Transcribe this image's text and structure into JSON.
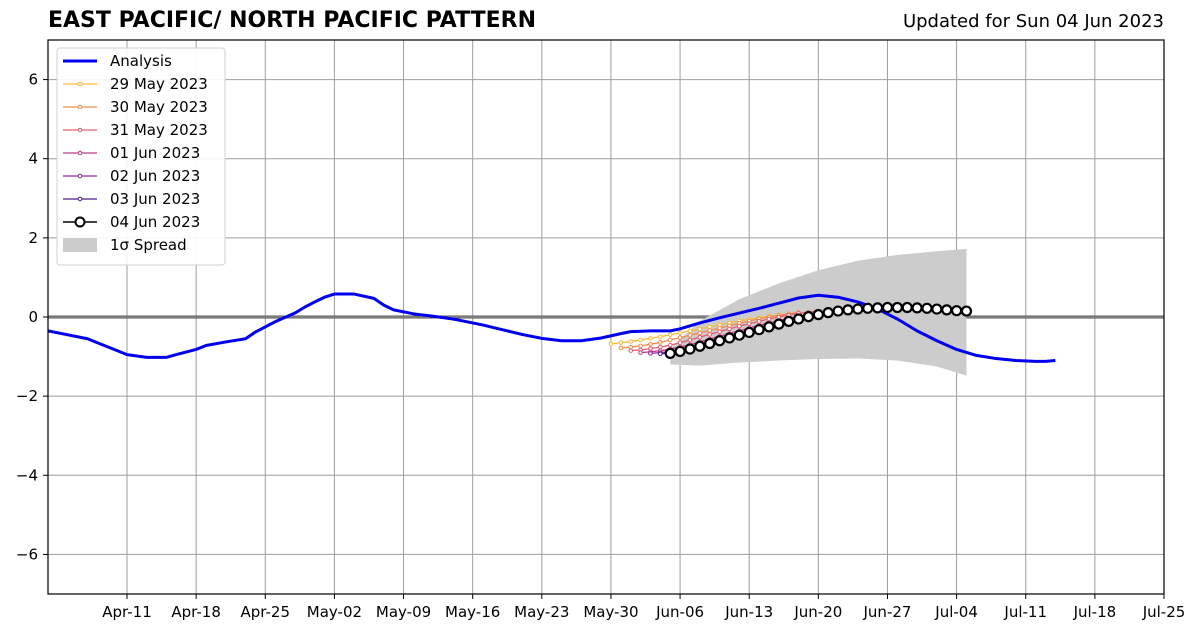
{
  "chart_data": {
    "type": "line",
    "title": "EAST PACIFIC/ NORTH PACIFIC PATTERN",
    "subtitle": "Updated for Sun 04 Jun 2023",
    "xlim": [
      "2023-04-03",
      "2023-07-25"
    ],
    "ylim": [
      -7,
      7
    ],
    "x_ticks": [
      {
        "date": "2023-04-11",
        "label": "Apr-11"
      },
      {
        "date": "2023-04-18",
        "label": "Apr-18"
      },
      {
        "date": "2023-04-25",
        "label": "Apr-25"
      },
      {
        "date": "2023-05-02",
        "label": "May-02"
      },
      {
        "date": "2023-05-09",
        "label": "May-09"
      },
      {
        "date": "2023-05-16",
        "label": "May-16"
      },
      {
        "date": "2023-05-23",
        "label": "May-23"
      },
      {
        "date": "2023-05-30",
        "label": "May-30"
      },
      {
        "date": "2023-06-06",
        "label": "Jun-06"
      },
      {
        "date": "2023-06-13",
        "label": "Jun-13"
      },
      {
        "date": "2023-06-20",
        "label": "Jun-20"
      },
      {
        "date": "2023-06-27",
        "label": "Jun-27"
      },
      {
        "date": "2023-07-04",
        "label": "Jul-04"
      },
      {
        "date": "2023-07-11",
        "label": "Jul-11"
      },
      {
        "date": "2023-07-18",
        "label": "Jul-18"
      },
      {
        "date": "2023-07-25",
        "label": "Jul-25"
      }
    ],
    "y_ticks": [
      {
        "value": -6,
        "label": "−6"
      },
      {
        "value": -4,
        "label": "−4"
      },
      {
        "value": -2,
        "label": "−2"
      },
      {
        "value": 0,
        "label": "0"
      },
      {
        "value": 2,
        "label": "2"
      },
      {
        "value": 4,
        "label": "4"
      },
      {
        "value": 6,
        "label": "6"
      }
    ],
    "grid": true,
    "zero_line": true,
    "legend_position": "top-left",
    "series": [
      {
        "name": "Analysis",
        "color": "#0000ee",
        "style": "thick-line",
        "points": [
          [
            "2023-04-03",
            -0.35
          ],
          [
            "2023-04-05",
            -0.45
          ],
          [
            "2023-04-07",
            -0.55
          ],
          [
            "2023-04-08",
            -0.65
          ],
          [
            "2023-04-10",
            -0.85
          ],
          [
            "2023-04-11",
            -0.95
          ],
          [
            "2023-04-13",
            -1.02
          ],
          [
            "2023-04-15",
            -1.02
          ],
          [
            "2023-04-16",
            -0.95
          ],
          [
            "2023-04-18",
            -0.82
          ],
          [
            "2023-04-19",
            -0.72
          ],
          [
            "2023-04-21",
            -0.63
          ],
          [
            "2023-04-23",
            -0.55
          ],
          [
            "2023-04-24",
            -0.38
          ],
          [
            "2023-04-26",
            -0.12
          ],
          [
            "2023-04-28",
            0.1
          ],
          [
            "2023-04-29",
            0.25
          ],
          [
            "2023-04-30",
            0.38
          ],
          [
            "2023-05-01",
            0.5
          ],
          [
            "2023-05-02",
            0.58
          ],
          [
            "2023-05-04",
            0.58
          ],
          [
            "2023-05-06",
            0.47
          ],
          [
            "2023-05-07",
            0.3
          ],
          [
            "2023-05-08",
            0.18
          ],
          [
            "2023-05-10",
            0.08
          ],
          [
            "2023-05-12",
            0.02
          ],
          [
            "2023-05-14",
            -0.05
          ],
          [
            "2023-05-15",
            -0.1
          ],
          [
            "2023-05-17",
            -0.2
          ],
          [
            "2023-05-19",
            -0.32
          ],
          [
            "2023-05-21",
            -0.44
          ],
          [
            "2023-05-23",
            -0.54
          ],
          [
            "2023-05-25",
            -0.6
          ],
          [
            "2023-05-27",
            -0.6
          ],
          [
            "2023-05-29",
            -0.53
          ],
          [
            "2023-05-31",
            -0.42
          ],
          [
            "2023-06-01",
            -0.37
          ],
          [
            "2023-06-03",
            -0.35
          ],
          [
            "2023-06-05",
            -0.35
          ],
          [
            "2023-06-06",
            -0.3
          ],
          [
            "2023-06-08",
            -0.15
          ],
          [
            "2023-06-10",
            -0.02
          ],
          [
            "2023-06-12",
            0.1
          ],
          [
            "2023-06-14",
            0.22
          ],
          [
            "2023-06-16",
            0.35
          ],
          [
            "2023-06-18",
            0.48
          ],
          [
            "2023-06-20",
            0.55
          ],
          [
            "2023-06-22",
            0.5
          ],
          [
            "2023-06-24",
            0.38
          ],
          [
            "2023-06-26",
            0.2
          ],
          [
            "2023-06-28",
            -0.05
          ],
          [
            "2023-06-30",
            -0.35
          ],
          [
            "2023-07-02",
            -0.6
          ],
          [
            "2023-07-04",
            -0.82
          ],
          [
            "2023-07-06",
            -0.97
          ],
          [
            "2023-07-08",
            -1.05
          ],
          [
            "2023-07-10",
            -1.1
          ],
          [
            "2023-07-12",
            -1.12
          ],
          [
            "2023-07-13",
            -1.12
          ],
          [
            "2023-07-14",
            -1.1
          ]
        ]
      },
      {
        "name": "29 May 2023",
        "color": "#f6b93b",
        "style": "small-marker",
        "points": [
          [
            "2023-05-30",
            -0.68
          ],
          [
            "2023-05-31",
            -0.65
          ],
          [
            "2023-06-01",
            -0.62
          ],
          [
            "2023-06-02",
            -0.58
          ],
          [
            "2023-06-03",
            -0.54
          ],
          [
            "2023-06-04",
            -0.5
          ],
          [
            "2023-06-05",
            -0.45
          ],
          [
            "2023-06-06",
            -0.4
          ],
          [
            "2023-06-07",
            -0.35
          ],
          [
            "2023-06-08",
            -0.3
          ],
          [
            "2023-06-09",
            -0.25
          ],
          [
            "2023-06-10",
            -0.2
          ],
          [
            "2023-06-11",
            -0.15
          ],
          [
            "2023-06-12",
            -0.1
          ],
          [
            "2023-06-13",
            -0.06
          ],
          [
            "2023-06-14",
            -0.02
          ],
          [
            "2023-06-15",
            0.02
          ],
          [
            "2023-06-16",
            0.05
          ],
          [
            "2023-06-17",
            0.08
          ]
        ]
      },
      {
        "name": "30 May 2023",
        "color": "#f08a4b",
        "style": "small-marker",
        "points": [
          [
            "2023-05-31",
            -0.78
          ],
          [
            "2023-06-01",
            -0.76
          ],
          [
            "2023-06-02",
            -0.73
          ],
          [
            "2023-06-03",
            -0.69
          ],
          [
            "2023-06-04",
            -0.64
          ],
          [
            "2023-06-05",
            -0.58
          ],
          [
            "2023-06-06",
            -0.52
          ],
          [
            "2023-06-07",
            -0.46
          ],
          [
            "2023-06-08",
            -0.4
          ],
          [
            "2023-06-09",
            -0.34
          ],
          [
            "2023-06-10",
            -0.28
          ],
          [
            "2023-06-11",
            -0.22
          ],
          [
            "2023-06-12",
            -0.16
          ],
          [
            "2023-06-13",
            -0.1
          ],
          [
            "2023-06-14",
            -0.05
          ],
          [
            "2023-06-15",
            0.0
          ],
          [
            "2023-06-16",
            0.04
          ],
          [
            "2023-06-17",
            0.08
          ],
          [
            "2023-06-18",
            0.11
          ]
        ]
      },
      {
        "name": "31 May 2023",
        "color": "#e35e6e",
        "style": "small-marker",
        "points": [
          [
            "2023-06-01",
            -0.85
          ],
          [
            "2023-06-02",
            -0.83
          ],
          [
            "2023-06-03",
            -0.8
          ],
          [
            "2023-06-04",
            -0.76
          ],
          [
            "2023-06-05",
            -0.71
          ],
          [
            "2023-06-06",
            -0.65
          ],
          [
            "2023-06-07",
            -0.58
          ],
          [
            "2023-06-08",
            -0.51
          ],
          [
            "2023-06-09",
            -0.44
          ],
          [
            "2023-06-10",
            -0.37
          ],
          [
            "2023-06-11",
            -0.3
          ],
          [
            "2023-06-12",
            -0.23
          ],
          [
            "2023-06-13",
            -0.17
          ],
          [
            "2023-06-14",
            -0.11
          ],
          [
            "2023-06-15",
            -0.05
          ],
          [
            "2023-06-16",
            0.0
          ],
          [
            "2023-06-17",
            0.05
          ],
          [
            "2023-06-18",
            0.09
          ],
          [
            "2023-06-19",
            0.12
          ],
          [
            "2023-06-20",
            0.15
          ]
        ]
      },
      {
        "name": "01 Jun 2023",
        "color": "#c03a83",
        "style": "small-marker",
        "points": [
          [
            "2023-06-02",
            -0.9
          ],
          [
            "2023-06-03",
            -0.88
          ],
          [
            "2023-06-04",
            -0.85
          ],
          [
            "2023-06-05",
            -0.81
          ],
          [
            "2023-06-06",
            -0.76
          ],
          [
            "2023-06-07",
            -0.7
          ],
          [
            "2023-06-08",
            -0.63
          ],
          [
            "2023-06-09",
            -0.56
          ],
          [
            "2023-06-10",
            -0.49
          ],
          [
            "2023-06-11",
            -0.42
          ],
          [
            "2023-06-12",
            -0.35
          ],
          [
            "2023-06-13",
            -0.28
          ],
          [
            "2023-06-14",
            -0.21
          ],
          [
            "2023-06-15",
            -0.15
          ],
          [
            "2023-06-16",
            -0.09
          ],
          [
            "2023-06-17",
            -0.04
          ],
          [
            "2023-06-18",
            0.01
          ],
          [
            "2023-06-19",
            0.06
          ],
          [
            "2023-06-20",
            0.1
          ],
          [
            "2023-06-21",
            0.14
          ]
        ]
      },
      {
        "name": "02 Jun 2023",
        "color": "#8f2a9f",
        "style": "small-marker",
        "points": [
          [
            "2023-06-03",
            -0.92
          ],
          [
            "2023-06-04",
            -0.9
          ],
          [
            "2023-06-05",
            -0.87
          ],
          [
            "2023-06-06",
            -0.83
          ],
          [
            "2023-06-07",
            -0.78
          ],
          [
            "2023-06-08",
            -0.72
          ],
          [
            "2023-06-09",
            -0.65
          ],
          [
            "2023-06-10",
            -0.58
          ],
          [
            "2023-06-11",
            -0.51
          ],
          [
            "2023-06-12",
            -0.44
          ],
          [
            "2023-06-13",
            -0.37
          ],
          [
            "2023-06-14",
            -0.3
          ],
          [
            "2023-06-15",
            -0.23
          ],
          [
            "2023-06-16",
            -0.17
          ],
          [
            "2023-06-17",
            -0.11
          ],
          [
            "2023-06-18",
            -0.05
          ],
          [
            "2023-06-19",
            0.0
          ],
          [
            "2023-06-20",
            0.05
          ],
          [
            "2023-06-21",
            0.1
          ]
        ]
      },
      {
        "name": "03 Jun 2023",
        "color": "#4b1c8c",
        "style": "small-marker",
        "points": [
          [
            "2023-06-04",
            -0.93
          ],
          [
            "2023-06-05",
            -0.91
          ],
          [
            "2023-06-06",
            -0.88
          ],
          [
            "2023-06-07",
            -0.84
          ],
          [
            "2023-06-08",
            -0.79
          ],
          [
            "2023-06-09",
            -0.73
          ],
          [
            "2023-06-10",
            -0.66
          ],
          [
            "2023-06-11",
            -0.59
          ],
          [
            "2023-06-12",
            -0.52
          ],
          [
            "2023-06-13",
            -0.45
          ],
          [
            "2023-06-14",
            -0.38
          ],
          [
            "2023-06-15",
            -0.31
          ],
          [
            "2023-06-16",
            -0.24
          ],
          [
            "2023-06-17",
            -0.17
          ],
          [
            "2023-06-18",
            -0.11
          ],
          [
            "2023-06-19",
            -0.05
          ],
          [
            "2023-06-20",
            0.0
          ],
          [
            "2023-06-21",
            0.05
          ]
        ]
      },
      {
        "name": "04 Jun 2023",
        "color": "#000000",
        "style": "open-circle",
        "points": [
          [
            "2023-06-05",
            -0.92
          ],
          [
            "2023-06-06",
            -0.87
          ],
          [
            "2023-06-07",
            -0.81
          ],
          [
            "2023-06-08",
            -0.74
          ],
          [
            "2023-06-09",
            -0.67
          ],
          [
            "2023-06-10",
            -0.6
          ],
          [
            "2023-06-11",
            -0.53
          ],
          [
            "2023-06-12",
            -0.46
          ],
          [
            "2023-06-13",
            -0.39
          ],
          [
            "2023-06-14",
            -0.32
          ],
          [
            "2023-06-15",
            -0.25
          ],
          [
            "2023-06-16",
            -0.18
          ],
          [
            "2023-06-17",
            -0.11
          ],
          [
            "2023-06-18",
            -0.05
          ],
          [
            "2023-06-19",
            0.01
          ],
          [
            "2023-06-20",
            0.06
          ],
          [
            "2023-06-21",
            0.11
          ],
          [
            "2023-06-22",
            0.15
          ],
          [
            "2023-06-23",
            0.18
          ],
          [
            "2023-06-24",
            0.2
          ],
          [
            "2023-06-25",
            0.22
          ],
          [
            "2023-06-26",
            0.23
          ],
          [
            "2023-06-27",
            0.24
          ],
          [
            "2023-06-28",
            0.24
          ],
          [
            "2023-06-29",
            0.24
          ],
          [
            "2023-06-30",
            0.23
          ],
          [
            "2023-07-01",
            0.22
          ],
          [
            "2023-07-02",
            0.2
          ],
          [
            "2023-07-03",
            0.18
          ],
          [
            "2023-07-04",
            0.16
          ],
          [
            "2023-07-05",
            0.15
          ]
        ]
      }
    ],
    "spread": {
      "name": "1σ Spread",
      "color": "#cccccc",
      "x": [
        "2023-06-05",
        "2023-06-08",
        "2023-06-12",
        "2023-06-16",
        "2023-06-20",
        "2023-06-24",
        "2023-06-28",
        "2023-07-02",
        "2023-07-05"
      ],
      "upper": [
        -0.8,
        -0.1,
        0.45,
        0.85,
        1.18,
        1.42,
        1.57,
        1.66,
        1.72
      ],
      "lower": [
        -1.2,
        -1.23,
        -1.15,
        -1.1,
        -1.06,
        -1.05,
        -1.1,
        -1.25,
        -1.48
      ]
    }
  }
}
